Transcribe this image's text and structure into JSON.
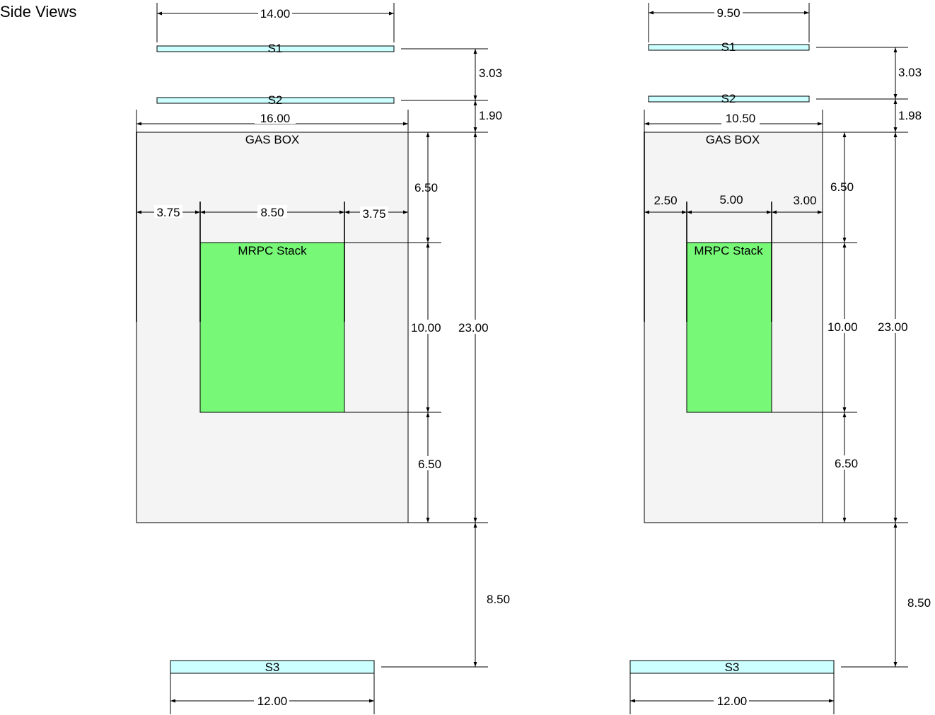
{
  "title": "Side Views",
  "colors": {
    "scintillator_fill": "#ccffff",
    "gas_box_fill": "#f4f4f4",
    "mrpc_fill": "#77f977",
    "line": "#000000"
  },
  "labels": {
    "s1": "S1",
    "s2": "S2",
    "s3": "S3",
    "gas_box": "GAS BOX",
    "mrpc": "MRPC Stack"
  },
  "views": [
    {
      "s1_width": "14.00",
      "s1_s2_gap": "3.03",
      "s2_gasbox_gap": "1.90",
      "gasbox_width": "16.00",
      "left_margin": "3.75",
      "mrpc_width": "8.50",
      "right_margin": "3.75",
      "top_gap": "6.50",
      "mrpc_height": "10.00",
      "bottom_gap": "6.50",
      "gasbox_height": "23.00",
      "gasbox_s3_gap": "8.50",
      "s3_width": "12.00"
    },
    {
      "s1_width": "9.50",
      "s1_s2_gap": "3.03",
      "s2_gasbox_gap": "1.98",
      "gasbox_width": "10.50",
      "left_margin": "2.50",
      "mrpc_width": "5.00",
      "right_margin": "3.00",
      "top_gap": "6.50",
      "mrpc_height": "10.00",
      "bottom_gap": "6.50",
      "gasbox_height": "23.00",
      "gasbox_s3_gap": "8.50",
      "s3_width": "12.00"
    }
  ]
}
